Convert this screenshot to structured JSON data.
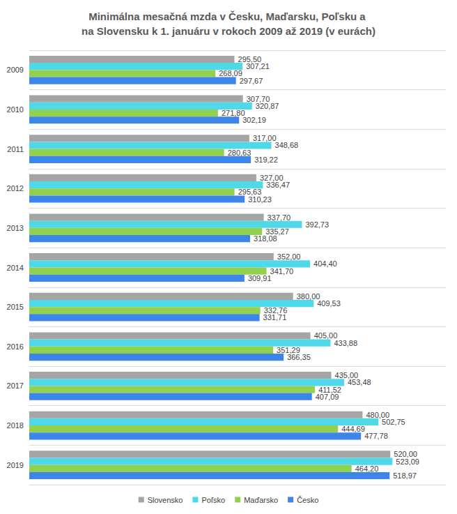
{
  "chart_data": {
    "type": "bar",
    "title": "Minimálna mesačná mzda v Česku, Maďarsku, Poľsku a na Slovensku k 1. januáru v rokoch 2009 až 2019 (v eurách)",
    "orientation": "horizontal",
    "categories": [
      "2009",
      "2010",
      "2011",
      "2012",
      "2013",
      "2014",
      "2015",
      "2016",
      "2017",
      "2018",
      "2019"
    ],
    "series": [
      {
        "name": "Slovensko",
        "color": "#a5a5a5",
        "values": [
          295.5,
          307.7,
          317.0,
          327.0,
          337.7,
          352.0,
          380.0,
          405.0,
          435.0,
          480.0,
          520.0
        ],
        "value_labels": [
          "295,50",
          "307,70",
          "317,00",
          "327,00",
          "337,70",
          "352,00",
          "380,00",
          "405,00",
          "435,00",
          "480,00",
          "520,00"
        ]
      },
      {
        "name": "Poľsko",
        "color": "#4fd8e8",
        "values": [
          307.21,
          320.87,
          348.68,
          336.47,
          392.73,
          404.4,
          409.53,
          433.88,
          453.48,
          502.75,
          523.09
        ],
        "value_labels": [
          "307,21",
          "320,87",
          "348,68",
          "336,47",
          "392,73",
          "404,40",
          "409,53",
          "433,88",
          "453,48",
          "502,75",
          "523,09"
        ]
      },
      {
        "name": "Maďarsko",
        "color": "#92d050",
        "values": [
          268.09,
          271.8,
          280.63,
          295.63,
          335.27,
          341.7,
          332.76,
          351.29,
          411.52,
          444.69,
          464.2
        ],
        "value_labels": [
          "268,09",
          "271,80",
          "280,63",
          "295,63",
          "335,27",
          "341,70",
          "332,76",
          "351,29",
          "411,52",
          "444,69",
          "464,20"
        ]
      },
      {
        "name": "Česko",
        "color": "#3d85e8",
        "values": [
          297.67,
          302.19,
          319.22,
          310.23,
          318.08,
          309.91,
          331.71,
          366.35,
          407.09,
          477.78,
          518.97
        ],
        "value_labels": [
          "297,67",
          "302,19",
          "319,22",
          "310,23",
          "318,08",
          "309,91",
          "331,71",
          "366,35",
          "407,09",
          "477,78",
          "518,97"
        ]
      }
    ],
    "xlim": [
      0,
      600
    ],
    "data_labels": true,
    "tick_labels": "y",
    "grid": true,
    "legend": "bottom"
  }
}
